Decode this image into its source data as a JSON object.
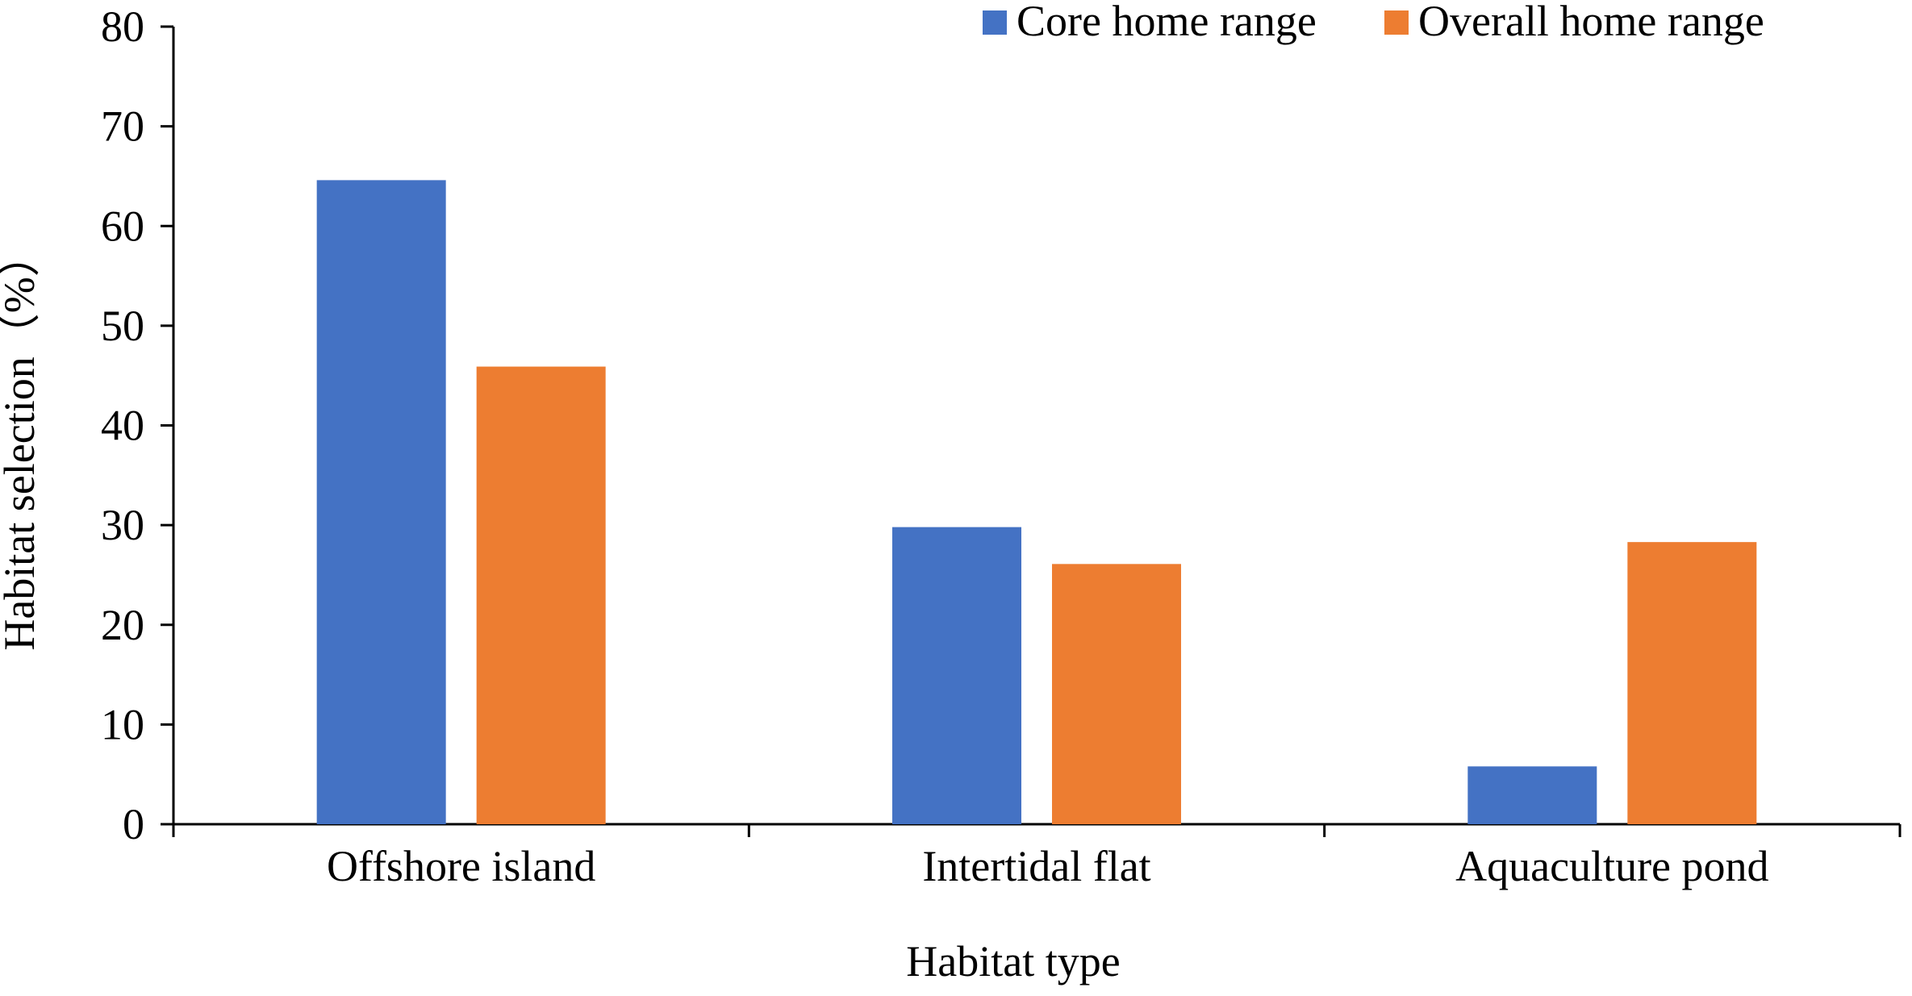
{
  "chart_data": {
    "type": "bar",
    "title": "",
    "xlabel": "Habitat type",
    "ylabel": "Habitat selection（%）",
    "ylim": [
      0,
      80
    ],
    "yticks": [
      0,
      10,
      20,
      30,
      40,
      50,
      60,
      70,
      80
    ],
    "grid": false,
    "legend_position": "top-right",
    "categories": [
      "Offshore island",
      "Intertidal flat",
      "Aquaculture pond"
    ],
    "series": [
      {
        "name": "Core home range",
        "color": "#4472C4",
        "values": [
          64.6,
          29.8,
          5.8
        ]
      },
      {
        "name": "Overall home range",
        "color": "#ED7D31",
        "values": [
          45.9,
          26.1,
          28.3
        ]
      }
    ]
  }
}
